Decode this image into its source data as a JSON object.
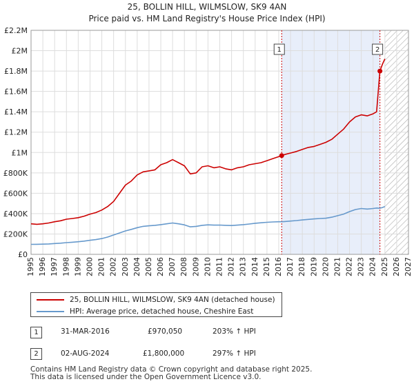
{
  "chart_data": {
    "type": "line",
    "title": "25, BOLLIN HILL, WILMSLOW, SK9 4AN",
    "subtitle": "Price paid vs. HM Land Registry's House Price Index (HPI)",
    "xlim": [
      1995,
      2027
    ],
    "ylim": [
      0,
      2200000
    ],
    "y_ticks": [
      0,
      200000,
      400000,
      600000,
      800000,
      1000000,
      1200000,
      1400000,
      1600000,
      1800000,
      2000000,
      2200000
    ],
    "y_tick_labels": [
      "£0",
      "£200K",
      "£400K",
      "£600K",
      "£800K",
      "£1M",
      "£1.2M",
      "£1.4M",
      "£1.6M",
      "£1.8M",
      "£2M",
      "£2.2M"
    ],
    "x_ticks": [
      1995,
      1996,
      1997,
      1998,
      1999,
      2000,
      2001,
      2002,
      2003,
      2004,
      2005,
      2006,
      2007,
      2008,
      2009,
      2010,
      2011,
      2012,
      2013,
      2014,
      2015,
      2016,
      2017,
      2018,
      2019,
      2020,
      2021,
      2022,
      2023,
      2024,
      2025,
      2026,
      2027
    ],
    "x_tick_labels": [
      "1995",
      "1996",
      "1997",
      "1998",
      "1999",
      "2000",
      "2001",
      "2002",
      "2003",
      "2004",
      "2005",
      "2006",
      "2007",
      "2008",
      "2009",
      "2010",
      "2011",
      "2012",
      "2013",
      "2014",
      "2015",
      "2016",
      "2017",
      "2018",
      "2019",
      "2020",
      "2021",
      "2022",
      "2023",
      "2024",
      "2025",
      "2026",
      "2027"
    ],
    "highlight_range": [
      2016.25,
      2024.58
    ],
    "future_hatch_from": 2025.0,
    "series": [
      {
        "name": "25, BOLLIN HILL, WILMSLOW, SK9 4AN (detached house)",
        "color": "#cc0000",
        "x": [
          1995,
          1995.5,
          1996,
          1996.5,
          1997,
          1997.5,
          1998,
          1998.5,
          1999,
          1999.5,
          2000,
          2000.5,
          2001,
          2001.5,
          2002,
          2002.5,
          2003,
          2003.5,
          2004,
          2004.5,
          2005,
          2005.5,
          2006,
          2006.5,
          2007,
          2007.5,
          2008,
          2008.5,
          2009,
          2009.5,
          2010,
          2010.5,
          2011,
          2011.5,
          2012,
          2012.5,
          2013,
          2013.5,
          2014,
          2014.5,
          2015,
          2015.5,
          2016,
          2016.25,
          2016.5,
          2017,
          2017.5,
          2018,
          2018.5,
          2019,
          2019.5,
          2020,
          2020.5,
          2021,
          2021.5,
          2022,
          2022.5,
          2023,
          2023.5,
          2024,
          2024.3,
          2024.58,
          2024.8,
          2025.0
        ],
        "values": [
          300000,
          295000,
          300000,
          308000,
          320000,
          330000,
          345000,
          352000,
          360000,
          375000,
          395000,
          410000,
          435000,
          470000,
          520000,
          600000,
          680000,
          720000,
          780000,
          810000,
          820000,
          830000,
          880000,
          900000,
          930000,
          900000,
          870000,
          790000,
          800000,
          860000,
          870000,
          850000,
          860000,
          840000,
          830000,
          850000,
          860000,
          880000,
          890000,
          900000,
          920000,
          940000,
          960000,
          970050,
          980000,
          995000,
          1010000,
          1030000,
          1050000,
          1060000,
          1080000,
          1100000,
          1130000,
          1180000,
          1230000,
          1300000,
          1350000,
          1370000,
          1360000,
          1380000,
          1400000,
          1800000,
          1870000,
          1920000
        ]
      },
      {
        "name": "HPI: Average price, detached house, Cheshire East",
        "color": "#6699cc",
        "x": [
          1995,
          1995.5,
          1996,
          1996.5,
          1997,
          1997.5,
          1998,
          1998.5,
          1999,
          1999.5,
          2000,
          2000.5,
          2001,
          2001.5,
          2002,
          2002.5,
          2003,
          2003.5,
          2004,
          2004.5,
          2005,
          2005.5,
          2006,
          2006.5,
          2007,
          2007.5,
          2008,
          2008.5,
          2009,
          2009.5,
          2010,
          2010.5,
          2011,
          2011.5,
          2012,
          2012.5,
          2013,
          2013.5,
          2014,
          2014.5,
          2015,
          2015.5,
          2016,
          2016.25,
          2016.5,
          2017,
          2017.5,
          2018,
          2018.5,
          2019,
          2019.5,
          2020,
          2020.5,
          2021,
          2021.5,
          2022,
          2022.5,
          2023,
          2023.5,
          2024,
          2024.3,
          2024.58,
          2024.8,
          2025.0
        ],
        "values": [
          98000,
          99000,
          100000,
          102000,
          106000,
          110000,
          115000,
          119000,
          124000,
          130000,
          138000,
          145000,
          155000,
          170000,
          190000,
          210000,
          230000,
          245000,
          262000,
          275000,
          280000,
          285000,
          292000,
          300000,
          308000,
          300000,
          290000,
          270000,
          275000,
          285000,
          290000,
          287000,
          288000,
          285000,
          283000,
          287000,
          292000,
          298000,
          305000,
          310000,
          315000,
          318000,
          320000,
          320000,
          322000,
          327000,
          332000,
          338000,
          343000,
          348000,
          352000,
          355000,
          365000,
          380000,
          395000,
          420000,
          440000,
          450000,
          445000,
          450000,
          455000,
          453000,
          460000,
          470000
        ]
      }
    ],
    "markers": [
      {
        "label": "1",
        "x": 2016.25,
        "value": 970050
      },
      {
        "label": "2",
        "x": 2024.58,
        "value": 1800000
      }
    ]
  },
  "legend": {
    "property_label": "25, BOLLIN HILL, WILMSLOW, SK9 4AN (detached house)",
    "hpi_label": "HPI: Average price, detached house, Cheshire East"
  },
  "transactions": [
    {
      "num": "1",
      "date": "31-MAR-2016",
      "price": "£970,050",
      "hpi": "203% ↑ HPI"
    },
    {
      "num": "2",
      "date": "02-AUG-2024",
      "price": "£1,800,000",
      "hpi": "297% ↑ HPI"
    }
  ],
  "footer": {
    "line1": "Contains HM Land Registry data © Crown copyright and database right 2025.",
    "line2": "This data is licensed under the Open Government Licence v3.0."
  },
  "colors": {
    "property_line": "#cc0000",
    "hpi_line": "#6699cc",
    "highlight": "#e8eefa",
    "grid": "#dddddd"
  }
}
